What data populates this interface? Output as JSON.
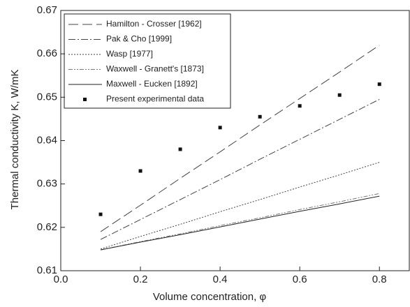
{
  "chart_data": {
    "type": "line",
    "xlabel": "Volume concentration, φ",
    "ylabel": "Thermal conductivity K, W/mK",
    "x": [
      0.1,
      0.2,
      0.3,
      0.4,
      0.5,
      0.6,
      0.7,
      0.8
    ],
    "xlim": [
      0,
      0.875
    ],
    "xticks": [
      {
        "value": 0,
        "label": "0.0"
      },
      0.2,
      0.4,
      0.6,
      0.8
    ],
    "ylim": [
      0.61,
      0.67
    ],
    "yticks": [
      0.61,
      0.62,
      0.63,
      0.64,
      0.65,
      0.66,
      0.67
    ],
    "legend": "upper left",
    "series": [
      {
        "name": "Hamilton - Crosser [1962]",
        "color": "#444444",
        "dash": "14,6",
        "values": [
          0.619,
          0.6251,
          0.6313,
          0.6374,
          0.6436,
          0.6497,
          0.6558,
          0.662
        ]
      },
      {
        "name": "Pak & Cho [1999]",
        "color": "#444444",
        "dash": "10,3,2,3",
        "values": [
          0.6172,
          0.6218,
          0.6264,
          0.631,
          0.6357,
          0.6403,
          0.6449,
          0.6495
        ]
      },
      {
        "name": "Wasp [1977]",
        "color": "#444444",
        "dash": "2,2",
        "values": [
          0.615,
          0.6179,
          0.6207,
          0.6236,
          0.6264,
          0.6293,
          0.6321,
          0.635
        ]
      },
      {
        "name": "Waxwell - Granett's [1873]",
        "color": "#777777",
        "dash": "6,2,2,2,2,2",
        "values": [
          0.6148,
          0.6167,
          0.6185,
          0.6204,
          0.6222,
          0.6241,
          0.6259,
          0.6278
        ]
      },
      {
        "name": "Maxwell - Eucken [1892]",
        "color": "#222222",
        "values": [
          0.6148,
          0.6166,
          0.6183,
          0.6201,
          0.6219,
          0.6237,
          0.6254,
          0.6272
        ]
      },
      {
        "name": "Present experimental data",
        "color": "#111111",
        "mode": "markers",
        "values": [
          0.623,
          0.633,
          0.638,
          0.643,
          0.6455,
          0.648,
          0.6505,
          0.653
        ]
      }
    ]
  }
}
